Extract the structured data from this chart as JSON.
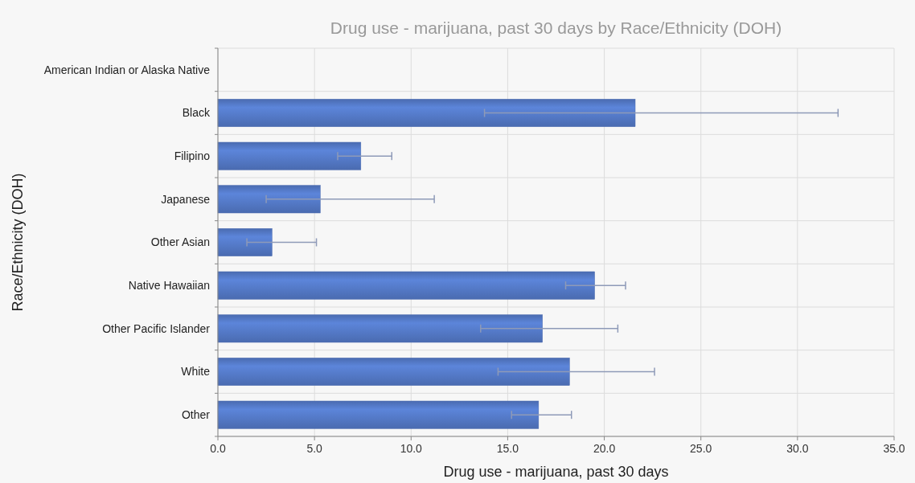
{
  "chart_data": {
    "type": "bar",
    "orientation": "horizontal",
    "title": "Drug use - marijuana, past 30 days by Race/Ethnicity (DOH)",
    "xlabel": "Drug use - marijuana, past 30 days",
    "ylabel": "Race/Ethnicity (DOH)",
    "categories": [
      "American Indian or Alaska Native",
      "Black",
      "Filipino",
      "Japanese",
      "Other Asian",
      "Native Hawaiian",
      "Other Pacific Islander",
      "White",
      "Other"
    ],
    "values": [
      null,
      21.6,
      7.4,
      5.3,
      2.8,
      19.5,
      16.8,
      18.2,
      16.6
    ],
    "errors": [
      null,
      [
        13.8,
        32.1
      ],
      [
        6.2,
        9.0
      ],
      [
        2.5,
        11.2
      ],
      [
        1.5,
        5.1
      ],
      [
        18.0,
        21.1
      ],
      [
        13.6,
        20.7
      ],
      [
        14.5,
        22.6
      ],
      [
        15.2,
        18.3
      ]
    ],
    "color": "#4a6bb0",
    "xlim": [
      0,
      35
    ],
    "xticks": [
      {
        "value": 0,
        "label": "0.0"
      },
      {
        "value": 5,
        "label": "5.0"
      },
      {
        "value": 10,
        "label": "10.0"
      },
      {
        "value": 15,
        "label": "15.0"
      },
      {
        "value": 20,
        "label": "20.0"
      },
      {
        "value": 25,
        "label": "25.0"
      },
      {
        "value": 30,
        "label": "30.0"
      },
      {
        "value": 35,
        "label": "35.0"
      }
    ],
    "grid": true
  }
}
